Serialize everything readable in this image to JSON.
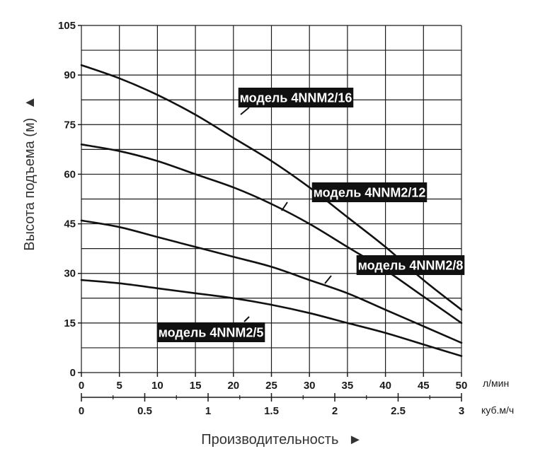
{
  "chart_data": {
    "type": "line",
    "title": "",
    "ylabel": "Высота подъема (м)",
    "xlabel": "Производительность",
    "y_arrow": "▲",
    "x_arrow": "►",
    "ylim": [
      0,
      105
    ],
    "yticks": [
      0,
      15,
      30,
      45,
      60,
      75,
      90,
      105
    ],
    "x_primary": {
      "unit": "л/мин",
      "lim": [
        0,
        50
      ],
      "ticks": [
        0,
        5,
        10,
        15,
        20,
        25,
        30,
        35,
        40,
        45,
        50
      ]
    },
    "x_secondary": {
      "unit": "куб.м/ч",
      "lim": [
        0,
        3
      ],
      "ticks": [
        "0",
        "0.5",
        "1",
        "1.5",
        "2",
        "2.5",
        "3"
      ]
    },
    "grid": true,
    "x": [
      0,
      5,
      10,
      15,
      20,
      25,
      30,
      35,
      40,
      45,
      50
    ],
    "series": [
      {
        "name": "модель 4NNM2/16",
        "values": [
          93,
          89,
          84,
          78,
          71,
          64,
          56,
          47,
          38,
          28,
          19
        ]
      },
      {
        "name": "модель 4NNM2/12",
        "values": [
          69,
          67,
          64,
          60,
          56,
          51,
          45,
          38,
          31,
          23,
          15
        ]
      },
      {
        "name": "модель 4NNM2/8",
        "values": [
          46,
          44,
          41,
          38,
          35,
          32,
          28,
          24,
          19,
          14,
          9
        ]
      },
      {
        "name": "модель 4NNM2/5",
        "values": [
          28,
          27,
          25.5,
          24,
          22.5,
          20.5,
          18,
          15,
          12,
          8.5,
          5
        ]
      }
    ],
    "colors": {
      "line": "#111111",
      "grid": "#1a1a1a",
      "label_bg": "#111111",
      "label_text": "#ffffff"
    }
  }
}
